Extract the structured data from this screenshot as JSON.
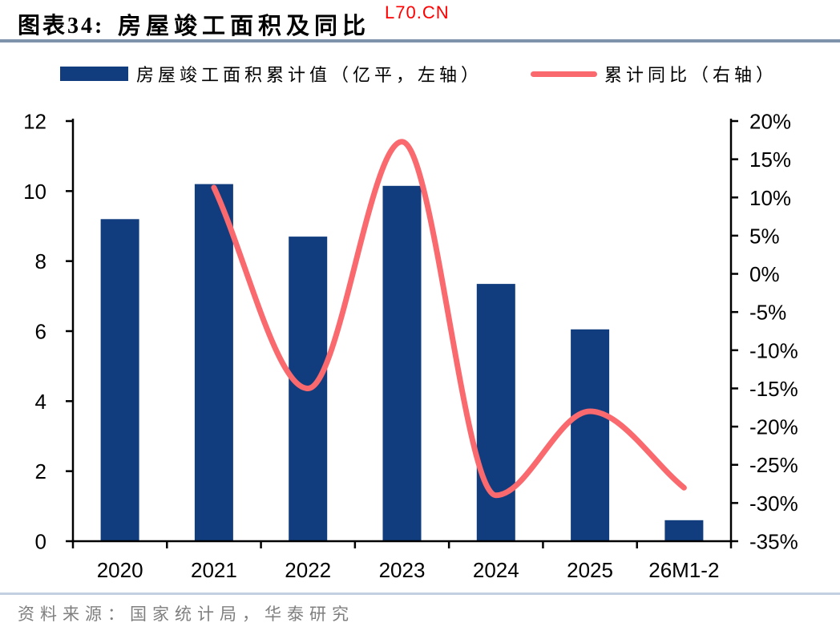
{
  "header": {
    "figure_label": "图表34:",
    "title": "房屋竣工面积及同比",
    "watermark": "L70.CN"
  },
  "legend": {
    "bar_label": "房屋竣工面积累计值（亿平，左轴）",
    "line_label": "累计同比（右轴）"
  },
  "chart_data": {
    "type": "bar",
    "subtype": "bar+line dual-axis combo",
    "title": "房屋竣工面积及同比",
    "categories": [
      "2020",
      "2021",
      "2022",
      "2023",
      "2024",
      "2025",
      "26M1-2"
    ],
    "series": [
      {
        "name": "房屋竣工面积累计值（亿平，左轴）",
        "type": "bar",
        "axis": "left",
        "color": "#113D7E",
        "values": [
          9.2,
          10.2,
          8.7,
          10.15,
          7.35,
          6.05,
          0.6
        ]
      },
      {
        "name": "累计同比（右轴）",
        "type": "line",
        "axis": "right",
        "color": "#F9696D",
        "smooth": true,
        "values": [
          null,
          11.3,
          -15,
          17.3,
          -29,
          -18,
          -28
        ]
      }
    ],
    "left_axis": {
      "min": 0,
      "max": 12,
      "step": 2,
      "tick_labels": [
        "0",
        "2",
        "4",
        "6",
        "8",
        "10",
        "12"
      ]
    },
    "right_axis": {
      "min": -35,
      "max": 20,
      "step": 5,
      "tick_labels": [
        "20%",
        "15%",
        "10%",
        "5%",
        "0%",
        "-5%",
        "-10%",
        "-15%",
        "-20%",
        "-25%",
        "-30%",
        "-35%"
      ]
    },
    "grid": false,
    "legend_position": "top"
  },
  "footer": {
    "source": "资料来源：国家统计局，华泰研究"
  },
  "colors": {
    "bar": "#113D7E",
    "line": "#F9696D",
    "axis": "#000000",
    "tick_text": "#000000",
    "header_divider": "#7E92AC",
    "footer_divider": "#C3D0E2",
    "source_text": "#7F7F7F",
    "watermark": "#FF0000"
  }
}
